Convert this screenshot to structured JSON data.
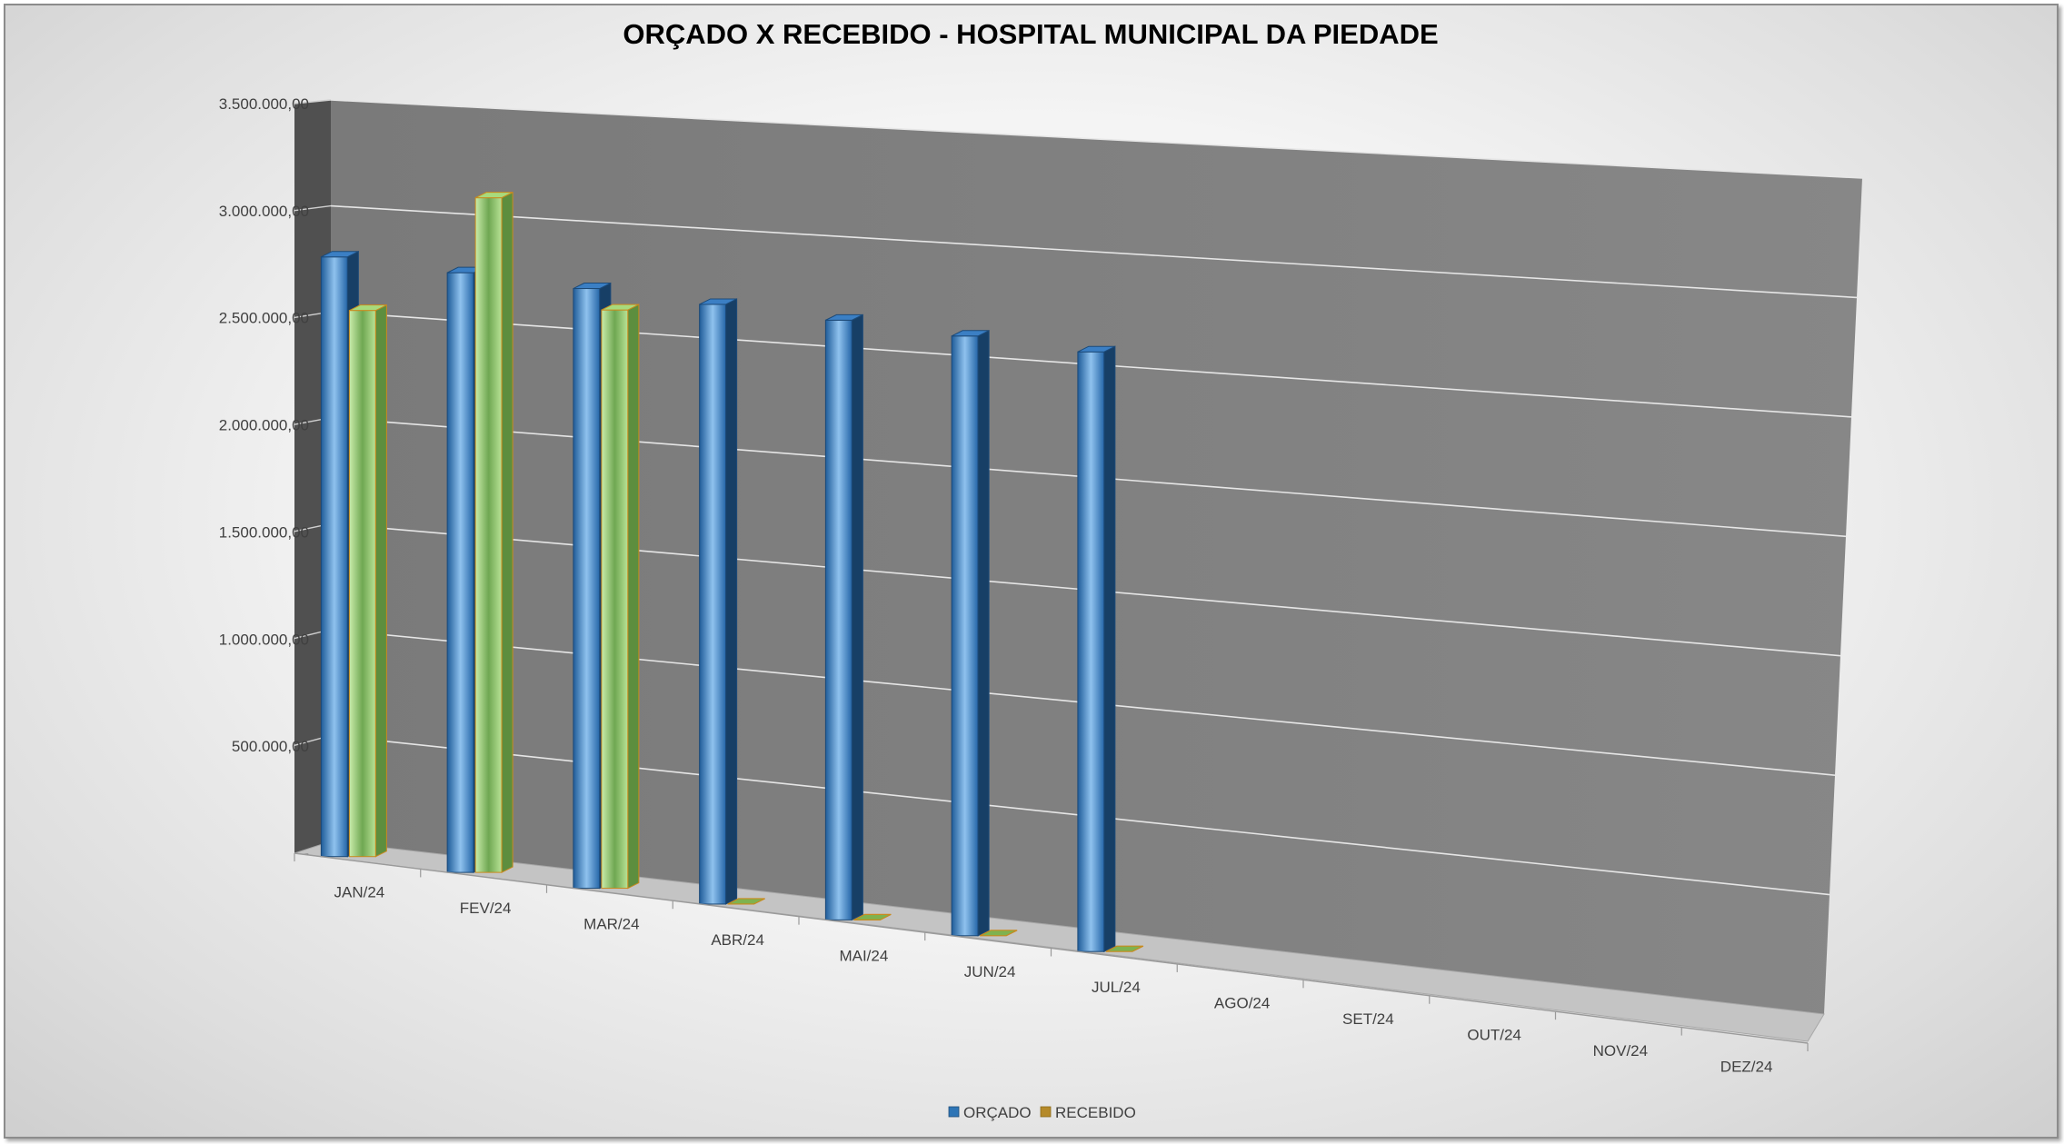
{
  "chart_data": {
    "type": "bar",
    "title": "ORÇADO X RECEBIDO - HOSPITAL MUNICIPAL DA PIEDADE",
    "xlabel": "",
    "ylabel": "",
    "ylim": [
      0,
      3500000
    ],
    "y_ticks": [
      {
        "value": 0,
        "label": "-"
      },
      {
        "value": 500000,
        "label": "500.000,00"
      },
      {
        "value": 1000000,
        "label": "1.000.000,00"
      },
      {
        "value": 1500000,
        "label": "1.500.000,00"
      },
      {
        "value": 2000000,
        "label": "2.000.000,00"
      },
      {
        "value": 2500000,
        "label": "2.500.000,00"
      },
      {
        "value": 3000000,
        "label": "3.000.000,00"
      },
      {
        "value": 3500000,
        "label": "3.500.000,00"
      }
    ],
    "categories": [
      "JAN/24",
      "FEV/24",
      "MAR/24",
      "ABR/24",
      "MAI/24",
      "JUN/24",
      "JUL/24",
      "AGO/24",
      "SET/24",
      "OUT/24",
      "NOV/24",
      "DEZ/24"
    ],
    "series": [
      {
        "name": "ORÇADO",
        "color": "#2e75b6",
        "values": [
          2800000,
          2800000,
          2800000,
          2800000,
          2800000,
          2800000,
          2800000,
          null,
          null,
          null,
          null,
          null
        ]
      },
      {
        "name": "RECEBIDO",
        "color": "#92d050",
        "values": [
          2550000,
          3150000,
          2700000,
          0,
          0,
          0,
          0,
          null,
          null,
          null,
          null,
          null
        ]
      }
    ],
    "grid": true,
    "legend_position": "bottom",
    "style": "3d-clustered-column"
  }
}
